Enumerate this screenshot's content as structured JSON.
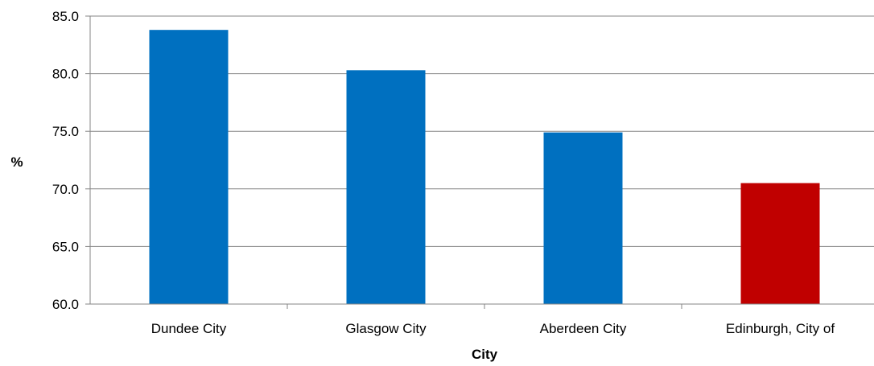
{
  "chart_data": {
    "type": "bar",
    "categories": [
      "Dundee City",
      "Glasgow City",
      "Aberdeen City",
      "Edinburgh, City of"
    ],
    "values": [
      83.8,
      80.3,
      74.9,
      70.5
    ],
    "bar_colors": [
      "#0070C0",
      "#0070C0",
      "#0070C0",
      "#C00000"
    ],
    "title": "",
    "xlabel": "City",
    "ylabel": "%",
    "ylim": [
      60.0,
      85.0
    ],
    "yticks": [
      "60.0",
      "65.0",
      "70.0",
      "75.0",
      "80.0",
      "85.0"
    ],
    "grid": true,
    "legend": "none"
  }
}
